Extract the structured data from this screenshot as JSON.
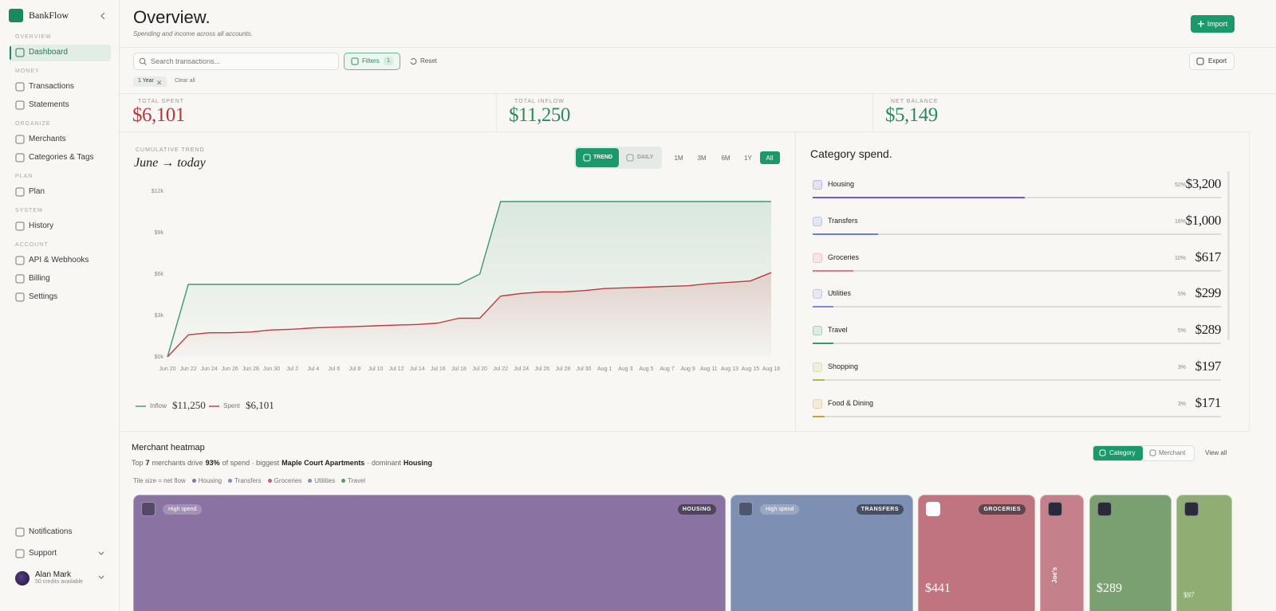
{
  "sidebar": {
    "brand": "BankFlow",
    "sections": [
      {
        "label": "OVERVIEW",
        "items": [
          "Dashboard"
        ]
      },
      {
        "label": "MONEY",
        "items": [
          "Transactions",
          "Statements"
        ]
      },
      {
        "label": "ORGANIZE",
        "items": [
          "Merchants",
          "Categories & Tags"
        ]
      },
      {
        "label": "PLAN",
        "items": [
          "Plan"
        ]
      },
      {
        "label": "SYSTEM",
        "items": [
          "History"
        ]
      },
      {
        "label": "ACCOUNT",
        "items": [
          "API & Webhooks",
          "Billing",
          "Settings"
        ]
      }
    ],
    "footer": [
      "Notifications",
      "Support"
    ],
    "user": {
      "name": "Alan Mark",
      "credits": "50 credits available"
    }
  },
  "header": {
    "title": "Overview.",
    "subtitle": "Spending and income across all accounts.",
    "import": "Import"
  },
  "toolbar": {
    "search": "Search transactions...",
    "filters": "Filters",
    "filter_count": "1",
    "reset": "Reset",
    "export": "Export",
    "chip": "1 Year",
    "clear": "Clear all"
  },
  "stats": [
    {
      "label": "TOTAL SPENT",
      "value": "$6,101",
      "color": "#b8373c"
    },
    {
      "label": "TOTAL INFLOW",
      "value": "$11,250",
      "color": "#2f8a5e"
    },
    {
      "label": "NET BALANCE",
      "value": "$5,149",
      "color": "#2f8a5e"
    }
  ],
  "trend": {
    "label": "CUMULATIVE TREND",
    "title": "June → today",
    "modes": [
      "TREND",
      "DAILY"
    ],
    "ranges": [
      "1M",
      "3M",
      "6M",
      "1Y",
      "All"
    ]
  },
  "chart_data": [
    {
      "type": "line",
      "categories": [
        "Jun 20",
        "Jun 22",
        "Jun 24",
        "Jun 26",
        "Jun 28",
        "Jun 30",
        "Jul 2",
        "Jul 4",
        "Jul 6",
        "Jul 8",
        "Jul 10",
        "Jul 12",
        "Jul 14",
        "Jul 16",
        "Jul 18",
        "Jul 20",
        "Jul 22",
        "Jul 24",
        "Jul 26",
        "Jul 28",
        "Jul 30",
        "Aug 1",
        "Aug 3",
        "Aug 5",
        "Aug 7",
        "Aug 9",
        "Aug 11",
        "Aug 13",
        "Aug 15",
        "Aug 18"
      ],
      "ylim": [
        0,
        12000
      ],
      "yticks": [
        {
          "value": 0,
          "label": "$0k"
        },
        {
          "value": 3000,
          "label": "$3k"
        },
        {
          "value": 6000,
          "label": "$6k"
        },
        {
          "value": 9000,
          "label": "$9k"
        },
        {
          "value": 12000,
          "label": "$12k"
        }
      ],
      "series": [
        {
          "name": "Inflow",
          "color": "#3d9a6e",
          "total_label": "$11,250",
          "values": [
            0,
            5250,
            5250,
            5250,
            5250,
            5250,
            5250,
            5250,
            5250,
            5250,
            5250,
            5250,
            5250,
            5250,
            5250,
            6000,
            11250,
            11250,
            11250,
            11250,
            11250,
            11250,
            11250,
            11250,
            11250,
            11250,
            11250,
            11250,
            11250,
            11250
          ]
        },
        {
          "name": "Spent",
          "color": "#c0393b",
          "total_label": "$6,101",
          "values": [
            0,
            1600,
            1750,
            1750,
            1800,
            1950,
            2000,
            2100,
            2150,
            2200,
            2250,
            2300,
            2350,
            2450,
            2800,
            2800,
            4400,
            4600,
            4700,
            4700,
            4800,
            4950,
            5000,
            5050,
            5100,
            5150,
            5300,
            5400,
            5500,
            6101
          ]
        }
      ]
    },
    {
      "type": "hbar",
      "title": "Category spend.",
      "categories": [
        "Housing",
        "Transfers",
        "Groceries",
        "Utilities",
        "Travel",
        "Shopping",
        "Food & Dining"
      ],
      "values": [
        52,
        16,
        10,
        5,
        5,
        3,
        3
      ],
      "value_labels": [
        "52%",
        "16%",
        "10%",
        "5%",
        "5%",
        "3%",
        "3%"
      ],
      "amounts": [
        "$3,200",
        "$1,000",
        "$617",
        "$299",
        "$289",
        "$197",
        "$171"
      ],
      "colors": [
        "#6b5bd6",
        "#6b7fd6",
        "#e07a8a",
        "#7a8ad6",
        "#3a9a5e",
        "#b5b84a",
        "#d4a030"
      ],
      "xlim": [
        0,
        100
      ]
    }
  ],
  "heatmap": {
    "title": "Merchant heatmap",
    "summary": [
      "Top",
      "7",
      "merchants drive",
      "93%",
      "of spend · biggest",
      "Maple Court Apartments",
      "· dominant",
      "Housing"
    ],
    "views": [
      "Category",
      "Merchant"
    ],
    "view_all": "View all",
    "legend_note": "Tile size = net flow",
    "legend": [
      {
        "name": "Housing",
        "color": "#8a72b0"
      },
      {
        "name": "Transfers",
        "color": "#7d8fc0"
      },
      {
        "name": "Groceries",
        "color": "#c0607a"
      },
      {
        "name": "Utilities",
        "color": "#8090c0"
      },
      {
        "name": "Travel",
        "color": "#5a9a60"
      }
    ],
    "tiles": [
      {
        "badge": "High spend",
        "category": "HOUSING",
        "color": "#8a72a2"
      },
      {
        "badge": "High spend",
        "category": "TRANSFERS",
        "color": "#7d8fb2"
      },
      {
        "category": "GROCERIES",
        "amount": "$441",
        "color": "#c0747f"
      },
      {
        "name": "Joe's",
        "color": "#c4808b"
      },
      {
        "amount": "$289",
        "color": "#7aa072"
      },
      {
        "amount": "$97",
        "color": "#90ae74"
      }
    ]
  }
}
